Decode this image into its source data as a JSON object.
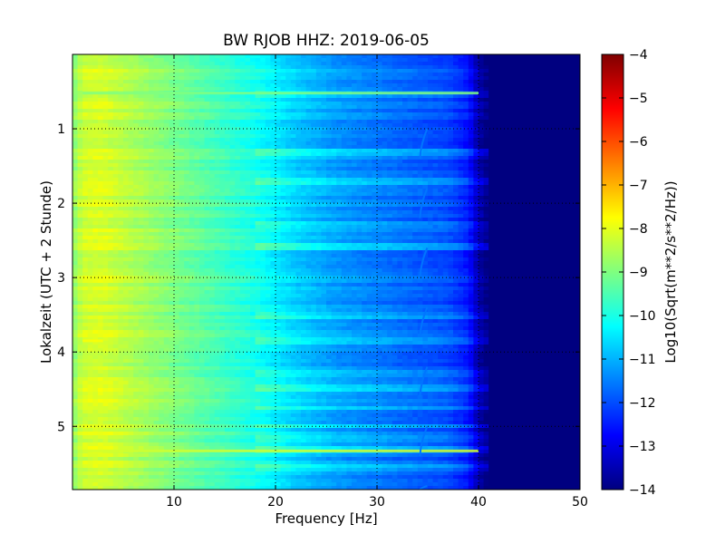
{
  "chart_data": {
    "type": "heatmap",
    "title": "BW RJOB HHZ: 2019-06-05",
    "xlabel": "Frequency [Hz]",
    "ylabel": "Lokalzeit (UTC + 2 Stunde)",
    "xlim": [
      0,
      50
    ],
    "ylim": [
      0,
      5.85
    ],
    "y_inverted": true,
    "grid": true,
    "x_ticks": [
      10,
      20,
      30,
      40,
      50
    ],
    "y_ticks": [
      1,
      2,
      3,
      4,
      5
    ],
    "colorbar": {
      "label": "Log10(Sqrt(m**2/s**2/Hz))",
      "range": [
        -14,
        -4
      ],
      "ticks": [
        -4,
        -5,
        -6,
        -7,
        -8,
        -9,
        -10,
        -11,
        -12,
        -13,
        -14
      ],
      "colormap": "jet"
    },
    "frequency_profile": {
      "x": [
        0,
        1,
        3,
        6,
        10,
        14,
        18,
        22,
        26,
        30,
        34,
        37,
        39,
        40,
        41,
        45,
        50
      ],
      "values": [
        -8.9,
        -8.2,
        -8.1,
        -8.5,
        -9.0,
        -9.5,
        -10.0,
        -10.7,
        -11.2,
        -11.5,
        -11.8,
        -12.0,
        -12.5,
        -13.5,
        -14,
        -14,
        -14
      ]
    },
    "banded_times": [
      0.52,
      1.3,
      1.7,
      2.3,
      2.6,
      3.5,
      3.85,
      4.3,
      4.5,
      4.75,
      5.0,
      5.15,
      5.33,
      5.55
    ],
    "strong_lines": [
      {
        "y": 0.52,
        "x_range": [
          1,
          40
        ],
        "level": -9.0
      },
      {
        "y": 5.33,
        "x_range": [
          1,
          40
        ],
        "level": -8.2
      },
      {
        "y": 3.85,
        "x_range": [
          1,
          3
        ],
        "level": -7.8
      }
    ],
    "tonal_feature": {
      "x": 34.5,
      "y_from": 0.35,
      "y_to": 5.85,
      "level": -11.6
    }
  }
}
